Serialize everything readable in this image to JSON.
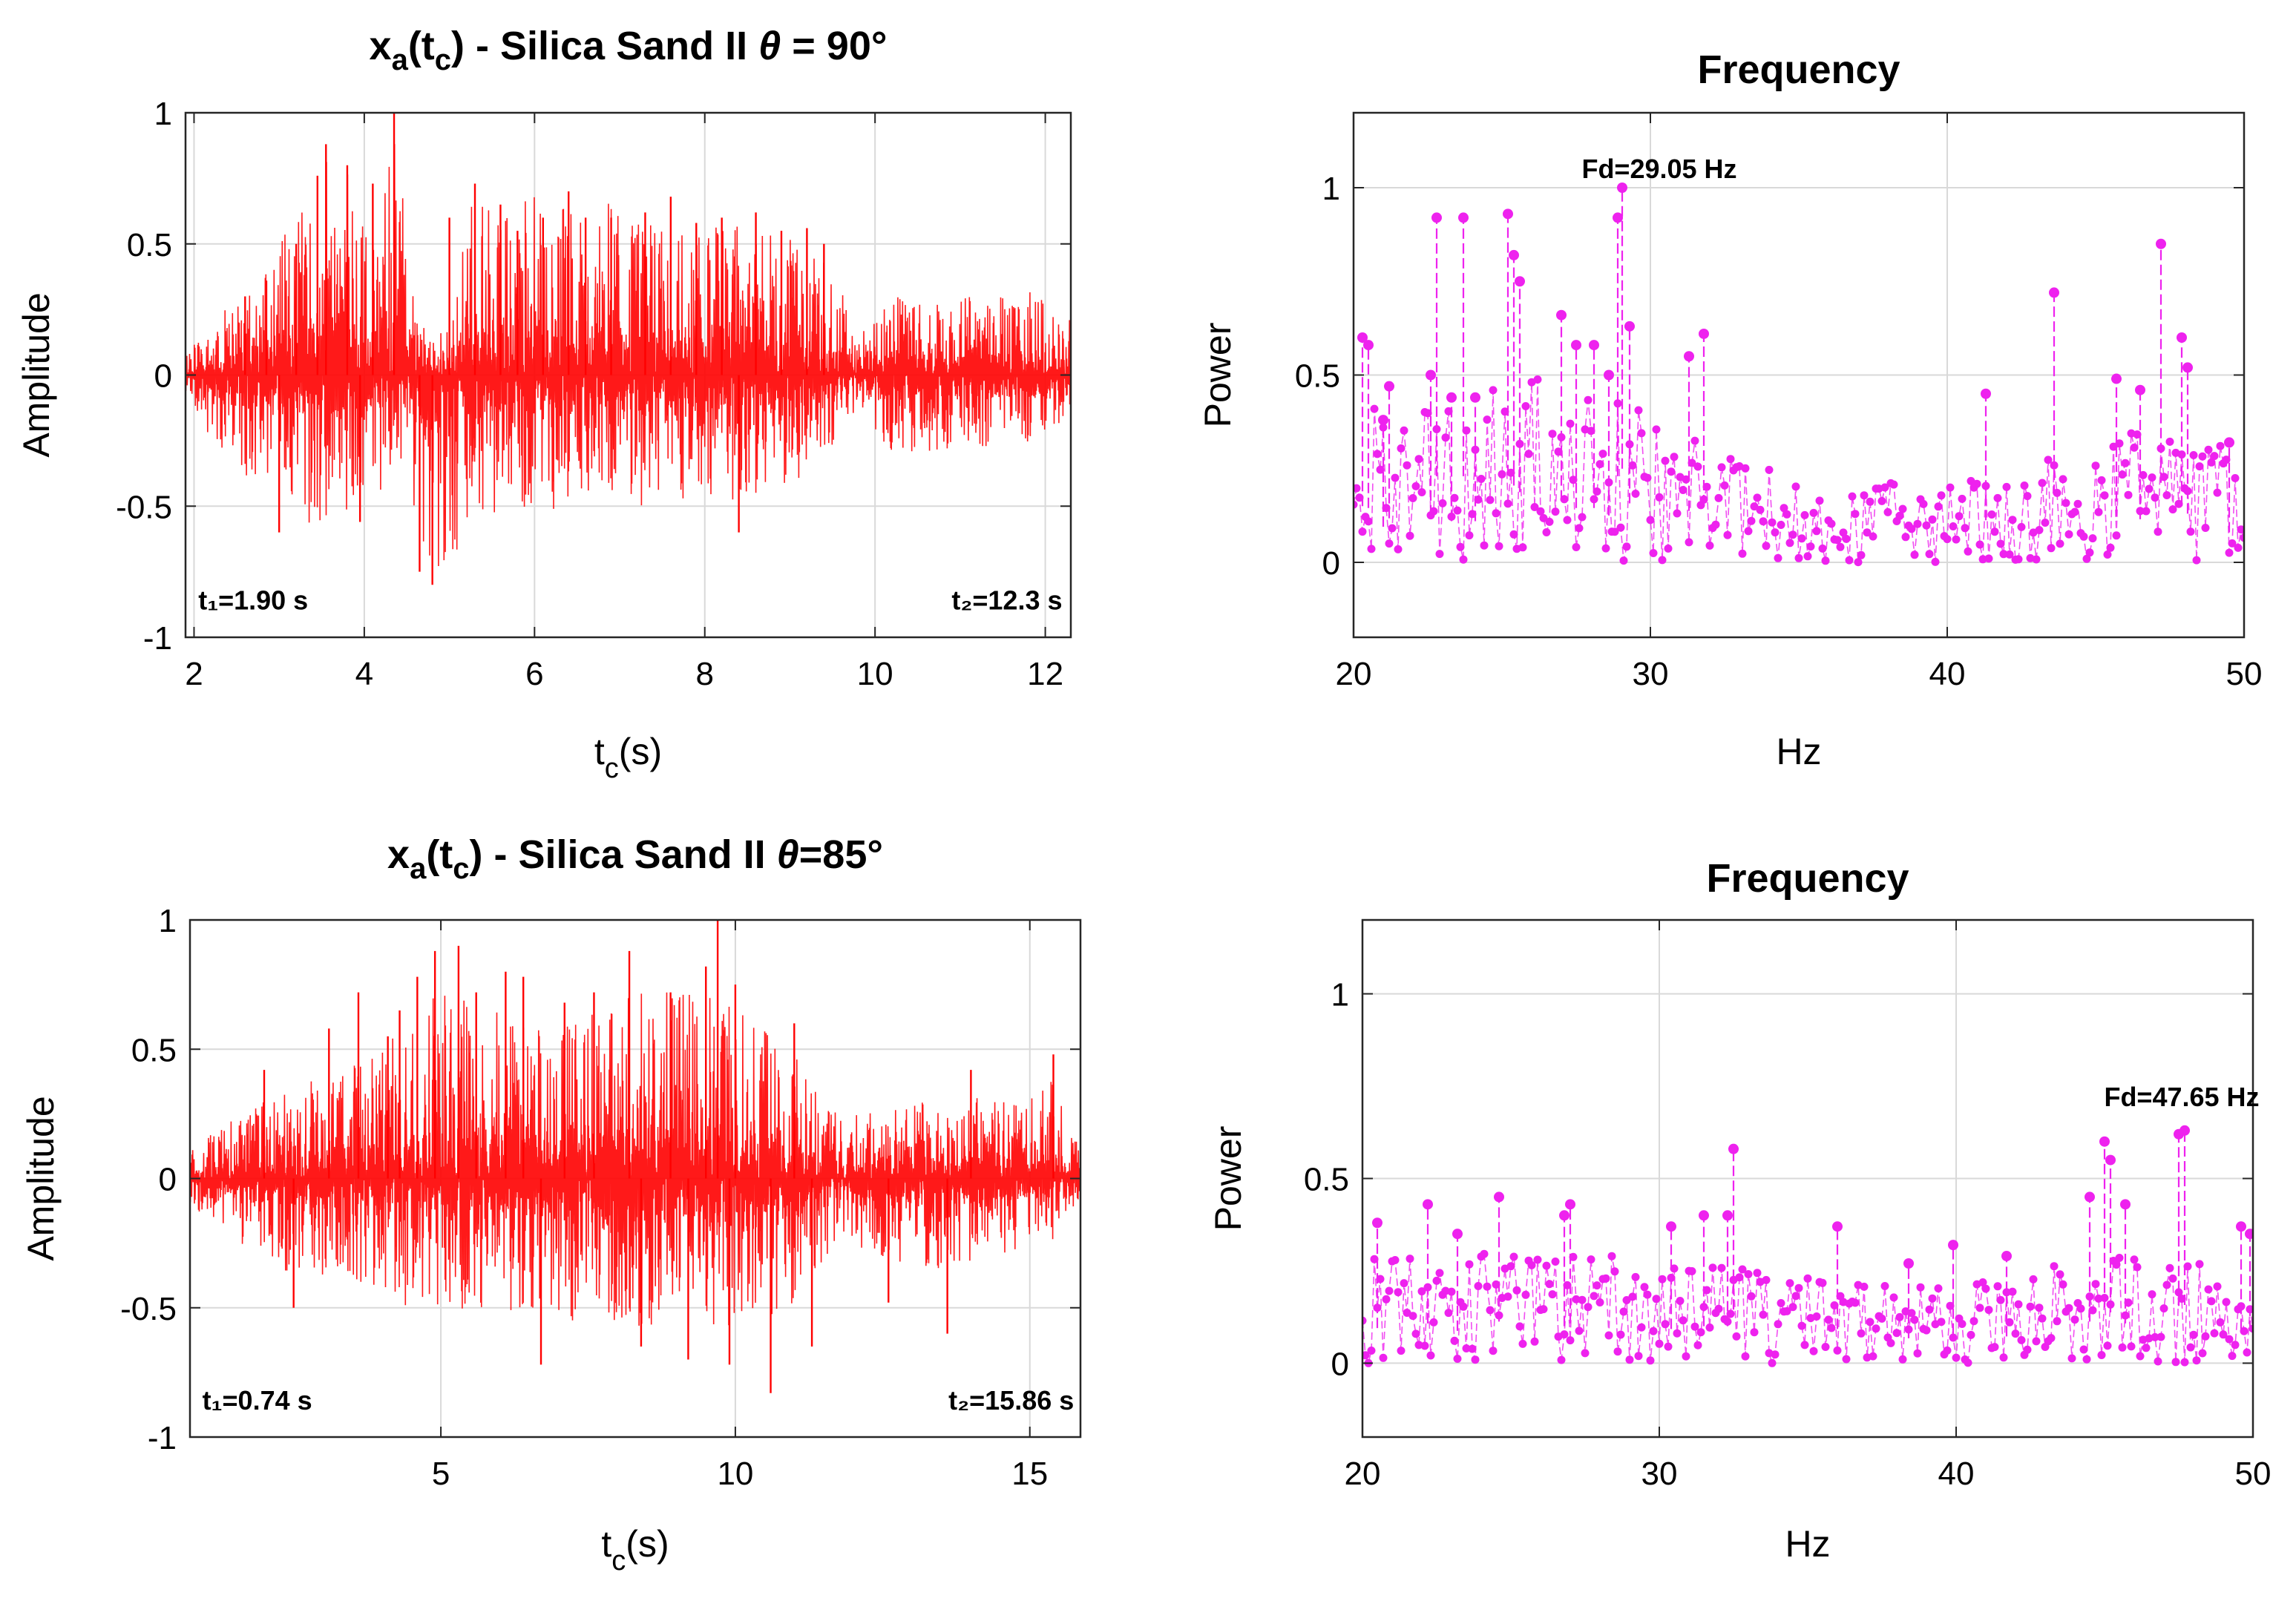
{
  "figure": {
    "colors": {
      "time_signal": "#ff0000",
      "spectrum": "#ee22ee",
      "grid": "#d9d9d9",
      "axis": "#262626",
      "text": "#000000"
    }
  },
  "chart_data": [
    {
      "id": "time-90",
      "type": "line",
      "title_parts": [
        "x",
        "a",
        "(t",
        "c",
        ") - Silica Sand II ",
        "θ",
        " = 90°"
      ],
      "xlabel_parts": [
        "t",
        "c",
        "(s)"
      ],
      "ylabel": "Amplitude",
      "xlim": [
        1.9,
        12.3
      ],
      "ylim": [
        -1,
        1
      ],
      "xticks": [
        2,
        4,
        6,
        8,
        10,
        12
      ],
      "xtick_labels": [
        "2",
        "4",
        "6",
        "8",
        "10",
        "12"
      ],
      "yticks": [
        -1,
        -0.5,
        0,
        0.5,
        1
      ],
      "ytick_labels": [
        "-1",
        "-0.5",
        "0",
        "0.5",
        "1"
      ],
      "grid": true,
      "annotations": [
        {
          "text": "t₁=1.90 s",
          "x": 2.05,
          "y": -0.86,
          "anchor": "start"
        },
        {
          "text": "t₂=12.3 s",
          "x": 12.2,
          "y": -0.86,
          "anchor": "end"
        }
      ],
      "envelope": [
        {
          "x": 1.9,
          "pos": 0.08,
          "neg": -0.06
        },
        {
          "x": 2.3,
          "pos": 0.22,
          "neg": -0.32
        },
        {
          "x": 2.6,
          "pos": 0.35,
          "neg": -0.4
        },
        {
          "x": 3.0,
          "pos": 0.5,
          "neg": -0.45
        },
        {
          "x": 3.4,
          "pos": 0.72,
          "neg": -0.58
        },
        {
          "x": 3.6,
          "pos": 0.88,
          "neg": -0.62
        },
        {
          "x": 3.9,
          "pos": 0.72,
          "neg": -0.5
        },
        {
          "x": 4.2,
          "pos": 0.65,
          "neg": -0.45
        },
        {
          "x": 4.35,
          "pos": 1.0,
          "neg": -0.35
        },
        {
          "x": 4.6,
          "pos": 0.3,
          "neg": -0.55
        },
        {
          "x": 4.8,
          "pos": 0.12,
          "neg": -0.8
        },
        {
          "x": 5.0,
          "pos": 0.2,
          "neg": -0.7
        },
        {
          "x": 5.3,
          "pos": 0.72,
          "neg": -0.6
        },
        {
          "x": 5.6,
          "pos": 0.6,
          "neg": -0.5
        },
        {
          "x": 6.0,
          "pos": 0.7,
          "neg": -0.55
        },
        {
          "x": 6.5,
          "pos": 0.7,
          "neg": -0.5
        },
        {
          "x": 7.0,
          "pos": 0.65,
          "neg": -0.45
        },
        {
          "x": 7.5,
          "pos": 0.6,
          "neg": -0.6
        },
        {
          "x": 8.0,
          "pos": 0.55,
          "neg": -0.5
        },
        {
          "x": 8.5,
          "pos": 0.62,
          "neg": -0.48
        },
        {
          "x": 9.0,
          "pos": 0.55,
          "neg": -0.45
        },
        {
          "x": 9.5,
          "pos": 0.42,
          "neg": -0.3
        },
        {
          "x": 9.8,
          "pos": 0.15,
          "neg": -0.12
        },
        {
          "x": 10.2,
          "pos": 0.3,
          "neg": -0.3
        },
        {
          "x": 11.0,
          "pos": 0.3,
          "neg": -0.28
        },
        {
          "x": 11.8,
          "pos": 0.32,
          "neg": -0.28
        },
        {
          "x": 12.3,
          "pos": 0.22,
          "neg": -0.15
        }
      ],
      "spikes": [
        {
          "x": 2.6,
          "y": 0.3
        },
        {
          "x": 2.85,
          "y": 0.36
        },
        {
          "x": 3.0,
          "y": -0.6
        },
        {
          "x": 3.2,
          "y": 0.5
        },
        {
          "x": 3.45,
          "y": 0.76
        },
        {
          "x": 3.55,
          "y": 0.88
        },
        {
          "x": 3.8,
          "y": 0.8
        },
        {
          "x": 3.95,
          "y": -0.56
        },
        {
          "x": 4.1,
          "y": 0.73
        },
        {
          "x": 4.35,
          "y": 1.0
        },
        {
          "x": 4.65,
          "y": -0.75
        },
        {
          "x": 4.8,
          "y": -0.8
        },
        {
          "x": 5.0,
          "y": 0.6
        },
        {
          "x": 5.3,
          "y": 0.73
        },
        {
          "x": 5.6,
          "y": 0.65
        },
        {
          "x": 5.8,
          "y": 0.55
        },
        {
          "x": 6.1,
          "y": 0.6
        },
        {
          "x": 6.4,
          "y": 0.7
        },
        {
          "x": 6.6,
          "y": 0.6
        },
        {
          "x": 6.9,
          "y": 0.6
        },
        {
          "x": 7.3,
          "y": 0.62
        },
        {
          "x": 7.6,
          "y": 0.68
        },
        {
          "x": 7.9,
          "y": 0.58
        },
        {
          "x": 8.2,
          "y": 0.6
        },
        {
          "x": 8.4,
          "y": -0.6
        },
        {
          "x": 8.6,
          "y": 0.62
        },
        {
          "x": 8.9,
          "y": 0.55
        },
        {
          "x": 9.2,
          "y": 0.56
        },
        {
          "x": 9.4,
          "y": 0.5
        }
      ]
    },
    {
      "id": "freq-90",
      "type": "scatter",
      "title": "Frequency",
      "xlabel": "Hz",
      "ylabel": "Power",
      "xlim": [
        20,
        50
      ],
      "ylim": [
        -0.2,
        1.2
      ],
      "xticks": [
        20,
        30,
        40,
        50
      ],
      "xtick_labels": [
        "20",
        "30",
        "40",
        "50"
      ],
      "yticks": [
        0,
        0.5,
        1
      ],
      "ytick_labels": [
        "0",
        "0.5",
        "1"
      ],
      "grid": true,
      "dominant_frequency_hz": 29.05,
      "annotations": [
        {
          "text": "Fd=29.05 Hz",
          "x": 30.3,
          "y": 1.05,
          "anchor": "middle"
        }
      ],
      "envelope": [
        {
          "x": 20,
          "max": 0.45
        },
        {
          "x": 22,
          "max": 0.4
        },
        {
          "x": 24,
          "max": 0.45
        },
        {
          "x": 26,
          "max": 0.5
        },
        {
          "x": 28,
          "max": 0.45
        },
        {
          "x": 30,
          "max": 0.4
        },
        {
          "x": 32,
          "max": 0.32
        },
        {
          "x": 34,
          "max": 0.25
        },
        {
          "x": 36,
          "max": 0.15
        },
        {
          "x": 38,
          "max": 0.22
        },
        {
          "x": 40,
          "max": 0.2
        },
        {
          "x": 42,
          "max": 0.25
        },
        {
          "x": 44,
          "max": 0.3
        },
        {
          "x": 46,
          "max": 0.35
        },
        {
          "x": 48,
          "max": 0.4
        },
        {
          "x": 50,
          "max": 0.3
        }
      ],
      "peaks": [
        {
          "x": 20.3,
          "y": 0.6
        },
        {
          "x": 20.5,
          "y": 0.58
        },
        {
          "x": 21.0,
          "y": 0.38
        },
        {
          "x": 21.2,
          "y": 0.47
        },
        {
          "x": 22.6,
          "y": 0.5
        },
        {
          "x": 22.8,
          "y": 0.92
        },
        {
          "x": 23.3,
          "y": 0.44
        },
        {
          "x": 23.7,
          "y": 0.92
        },
        {
          "x": 24.1,
          "y": 0.44
        },
        {
          "x": 25.2,
          "y": 0.93
        },
        {
          "x": 25.4,
          "y": 0.82
        },
        {
          "x": 25.6,
          "y": 0.75
        },
        {
          "x": 27.0,
          "y": 0.66
        },
        {
          "x": 27.5,
          "y": 0.58
        },
        {
          "x": 28.1,
          "y": 0.58
        },
        {
          "x": 28.6,
          "y": 0.5
        },
        {
          "x": 28.9,
          "y": 0.92
        },
        {
          "x": 29.05,
          "y": 1.0
        },
        {
          "x": 29.3,
          "y": 0.63
        },
        {
          "x": 31.3,
          "y": 0.55
        },
        {
          "x": 31.8,
          "y": 0.61
        },
        {
          "x": 41.3,
          "y": 0.45
        },
        {
          "x": 43.6,
          "y": 0.72
        },
        {
          "x": 45.7,
          "y": 0.49
        },
        {
          "x": 46.5,
          "y": 0.46
        },
        {
          "x": 47.2,
          "y": 0.85
        },
        {
          "x": 47.9,
          "y": 0.6
        },
        {
          "x": 48.1,
          "y": 0.52
        },
        {
          "x": 49.5,
          "y": 0.32
        }
      ]
    },
    {
      "id": "time-85",
      "type": "line",
      "title_parts": [
        "x",
        "a",
        "(t",
        "c",
        ") - Silica Sand II ",
        "θ",
        "=85°"
      ],
      "xlabel_parts": [
        "t",
        "c",
        "(s)"
      ],
      "ylabel": "Amplitude",
      "xlim": [
        0.74,
        15.86
      ],
      "ylim": [
        -1,
        1
      ],
      "xticks": [
        5,
        10,
        15
      ],
      "xtick_labels": [
        "5",
        "10",
        "15"
      ],
      "yticks": [
        -1,
        -0.5,
        0,
        0.5,
        1
      ],
      "ytick_labels": [
        "-1",
        "-0.5",
        "0",
        "0.5",
        "1"
      ],
      "grid": true,
      "annotations": [
        {
          "text": "t₁=0.74 s",
          "x": 0.95,
          "y": -0.86,
          "anchor": "start"
        },
        {
          "text": "t₂=15.86 s",
          "x": 15.75,
          "y": -0.86,
          "anchor": "end"
        }
      ],
      "envelope": [
        {
          "x": 0.74,
          "pos": 0.12,
          "neg": -0.12
        },
        {
          "x": 1.5,
          "pos": 0.25,
          "neg": -0.25
        },
        {
          "x": 2.5,
          "pos": 0.35,
          "neg": -0.38
        },
        {
          "x": 3.5,
          "pos": 0.45,
          "neg": -0.4
        },
        {
          "x": 4.5,
          "pos": 0.6,
          "neg": -0.5
        },
        {
          "x": 5.0,
          "pos": 0.75,
          "neg": -0.55
        },
        {
          "x": 6.0,
          "pos": 0.65,
          "neg": -0.5
        },
        {
          "x": 7.0,
          "pos": 0.62,
          "neg": -0.55
        },
        {
          "x": 8.0,
          "pos": 0.7,
          "neg": -0.6
        },
        {
          "x": 9.0,
          "pos": 0.75,
          "neg": -0.55
        },
        {
          "x": 10.0,
          "pos": 0.7,
          "neg": -0.6
        },
        {
          "x": 11.0,
          "pos": 0.5,
          "neg": -0.5
        },
        {
          "x": 11.8,
          "pos": 0.22,
          "neg": -0.22
        },
        {
          "x": 12.5,
          "pos": 0.3,
          "neg": -0.32
        },
        {
          "x": 13.5,
          "pos": 0.3,
          "neg": -0.35
        },
        {
          "x": 14.5,
          "pos": 0.32,
          "neg": -0.3
        },
        {
          "x": 15.4,
          "pos": 0.4,
          "neg": -0.25
        },
        {
          "x": 15.86,
          "pos": 0.1,
          "neg": -0.08
        }
      ],
      "spikes": [
        {
          "x": 2.0,
          "y": 0.42
        },
        {
          "x": 2.5,
          "y": -0.5
        },
        {
          "x": 3.1,
          "y": 0.58
        },
        {
          "x": 3.6,
          "y": 0.72
        },
        {
          "x": 4.1,
          "y": 0.55
        },
        {
          "x": 4.3,
          "y": 0.65
        },
        {
          "x": 4.6,
          "y": 0.78
        },
        {
          "x": 4.9,
          "y": 0.88
        },
        {
          "x": 5.3,
          "y": 0.9
        },
        {
          "x": 5.6,
          "y": 0.72
        },
        {
          "x": 6.1,
          "y": 0.8
        },
        {
          "x": 6.4,
          "y": 0.78
        },
        {
          "x": 6.7,
          "y": -0.72
        },
        {
          "x": 7.1,
          "y": 0.68
        },
        {
          "x": 7.6,
          "y": 0.72
        },
        {
          "x": 8.2,
          "y": 0.88
        },
        {
          "x": 8.4,
          "y": -0.65
        },
        {
          "x": 8.9,
          "y": 0.72
        },
        {
          "x": 9.2,
          "y": -0.7
        },
        {
          "x": 9.5,
          "y": 0.82
        },
        {
          "x": 9.7,
          "y": 1.0
        },
        {
          "x": 9.9,
          "y": -0.72
        },
        {
          "x": 10.0,
          "y": 0.75
        },
        {
          "x": 10.6,
          "y": -0.83
        },
        {
          "x": 11.0,
          "y": 0.6
        },
        {
          "x": 11.3,
          "y": -0.65
        },
        {
          "x": 12.6,
          "y": -0.48
        },
        {
          "x": 13.6,
          "y": -0.6
        },
        {
          "x": 14.0,
          "y": 0.42
        },
        {
          "x": 15.4,
          "y": 0.48
        }
      ]
    },
    {
      "id": "freq-85",
      "type": "scatter",
      "title": "Frequency",
      "xlabel": "Hz",
      "ylabel": "Power",
      "xlim": [
        20,
        50
      ],
      "ylim": [
        -0.2,
        1.2
      ],
      "xticks": [
        20,
        30,
        40,
        50
      ],
      "xtick_labels": [
        "20",
        "30",
        "40",
        "50"
      ],
      "yticks": [
        0,
        0.5,
        1
      ],
      "ytick_labels": [
        "0",
        "0.5",
        "1"
      ],
      "grid": true,
      "dominant_frequency_hz": 47.65,
      "annotations": [
        {
          "text": "Fd=47.65 Hz",
          "x": 47.6,
          "y": 0.72,
          "anchor": "middle"
        }
      ],
      "envelope": [
        {
          "x": 20,
          "max": 0.3
        },
        {
          "x": 22,
          "max": 0.28
        },
        {
          "x": 24,
          "max": 0.3
        },
        {
          "x": 26,
          "max": 0.28
        },
        {
          "x": 28,
          "max": 0.3
        },
        {
          "x": 30,
          "max": 0.25
        },
        {
          "x": 32,
          "max": 0.3
        },
        {
          "x": 34,
          "max": 0.25
        },
        {
          "x": 36,
          "max": 0.22
        },
        {
          "x": 38,
          "max": 0.22
        },
        {
          "x": 40,
          "max": 0.24
        },
        {
          "x": 42,
          "max": 0.22
        },
        {
          "x": 44,
          "max": 0.3
        },
        {
          "x": 46,
          "max": 0.3
        },
        {
          "x": 48,
          "max": 0.3
        },
        {
          "x": 50,
          "max": 0.25
        }
      ],
      "peaks": [
        {
          "x": 20.5,
          "y": 0.38
        },
        {
          "x": 22.2,
          "y": 0.43
        },
        {
          "x": 23.2,
          "y": 0.35
        },
        {
          "x": 24.6,
          "y": 0.45
        },
        {
          "x": 26.8,
          "y": 0.4
        },
        {
          "x": 27.0,
          "y": 0.43
        },
        {
          "x": 30.4,
          "y": 0.37
        },
        {
          "x": 31.5,
          "y": 0.4
        },
        {
          "x": 32.5,
          "y": 0.58
        },
        {
          "x": 32.3,
          "y": 0.4
        },
        {
          "x": 36.0,
          "y": 0.37
        },
        {
          "x": 38.4,
          "y": 0.27
        },
        {
          "x": 39.9,
          "y": 0.32
        },
        {
          "x": 41.7,
          "y": 0.29
        },
        {
          "x": 44.5,
          "y": 0.45
        },
        {
          "x": 45.0,
          "y": 0.6
        },
        {
          "x": 45.2,
          "y": 0.55
        },
        {
          "x": 45.7,
          "y": 0.43
        },
        {
          "x": 47.5,
          "y": 0.62
        },
        {
          "x": 47.7,
          "y": 0.63
        },
        {
          "x": 49.6,
          "y": 0.37
        },
        {
          "x": 49.9,
          "y": 0.35
        }
      ]
    }
  ]
}
